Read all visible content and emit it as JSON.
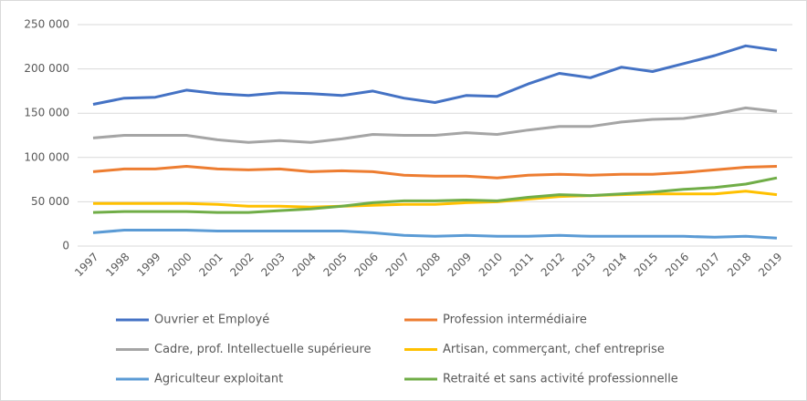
{
  "chart_data": {
    "type": "line",
    "categories": [
      "1997",
      "1998",
      "1999",
      "2000",
      "2001",
      "2002",
      "2003",
      "2004",
      "2005",
      "2006",
      "2007",
      "2008",
      "2009",
      "2010",
      "2011",
      "2012",
      "2013",
      "2014",
      "2015",
      "2016",
      "2017",
      "2018",
      "2019"
    ],
    "series": [
      {
        "name": "Ouvrier et Employé",
        "color": "#4472c4",
        "values": [
          160000,
          167000,
          168000,
          176000,
          172000,
          170000,
          173000,
          172000,
          170000,
          175000,
          167000,
          162000,
          170000,
          169000,
          183000,
          195000,
          190000,
          202000,
          197000,
          206000,
          215000,
          226000,
          221000
        ]
      },
      {
        "name": "Profession intermédiaire",
        "color": "#ed7d31",
        "values": [
          84000,
          87000,
          87000,
          90000,
          87000,
          86000,
          87000,
          84000,
          85000,
          84000,
          80000,
          79000,
          79000,
          77000,
          80000,
          81000,
          80000,
          81000,
          81000,
          83000,
          86000,
          89000,
          90000
        ]
      },
      {
        "name": "Cadre, prof. Intellectuelle supérieure",
        "color": "#a5a5a5",
        "values": [
          122000,
          125000,
          125000,
          125000,
          120000,
          117000,
          119000,
          117000,
          121000,
          126000,
          125000,
          125000,
          128000,
          126000,
          131000,
          135000,
          135000,
          140000,
          143000,
          144000,
          149000,
          156000,
          152000
        ]
      },
      {
        "name": "Artisan, commerçant, chef entreprise",
        "color": "#ffc000",
        "values": [
          48000,
          48000,
          48000,
          48000,
          47000,
          45000,
          45000,
          44000,
          45000,
          46000,
          47000,
          47000,
          49000,
          50000,
          53000,
          56000,
          57000,
          58000,
          59000,
          59000,
          59000,
          62000,
          58000
        ]
      },
      {
        "name": "Agriculteur exploitant",
        "color": "#5b9bd5",
        "values": [
          15000,
          18000,
          18000,
          18000,
          17000,
          17000,
          17000,
          17000,
          17000,
          15000,
          12000,
          11000,
          12000,
          11000,
          11000,
          12000,
          11000,
          11000,
          11000,
          11000,
          10000,
          11000,
          9000
        ]
      },
      {
        "name": "Retraité et sans activité professionnelle",
        "color": "#70ad47",
        "values": [
          38000,
          39000,
          39000,
          39000,
          38000,
          38000,
          40000,
          42000,
          45000,
          49000,
          51000,
          51000,
          52000,
          51000,
          55000,
          58000,
          57000,
          59000,
          61000,
          64000,
          66000,
          70000,
          77000
        ]
      }
    ],
    "ylim": [
      0,
      250000
    ],
    "yticks": [
      0,
      {
        "value": 50000,
        "label": "50 000"
      },
      {
        "value": 100000,
        "label": "100 000"
      },
      {
        "value": 150000,
        "label": "150 000"
      },
      {
        "value": 200000,
        "label": "200 000"
      },
      {
        "value": 250000,
        "label": "250 000"
      }
    ],
    "grid": true,
    "legend": "bottom"
  }
}
